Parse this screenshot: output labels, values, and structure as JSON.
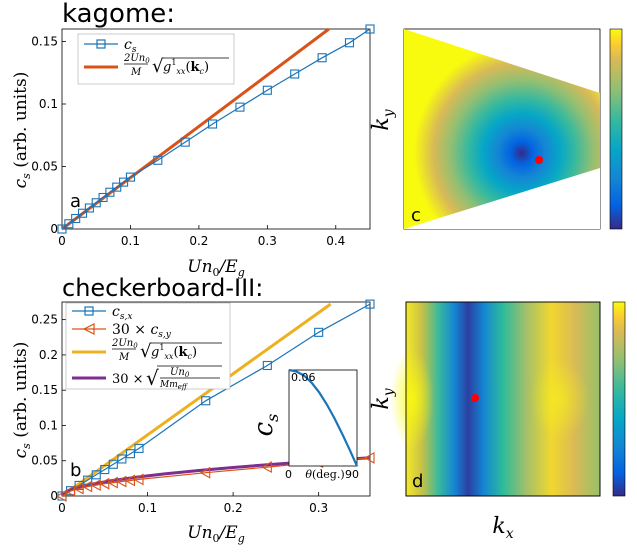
{
  "panels": {
    "a": {
      "title": "kagome:",
      "panel_label": "a",
      "xlabel": "Un_0/E_g",
      "ylabel": "c_s (arb. units)",
      "legend": [
        "c_s",
        "(2Un_0/M) sqrt(g^1_xx(k_c))"
      ]
    },
    "b": {
      "title": "checkerboard-III:",
      "panel_label": "b",
      "xlabel": "Un_0/E_g",
      "ylabel": "c_s (arb. units)",
      "legend": [
        "c_s,x",
        "30 × c_s,y",
        "(2Un_0/M) sqrt(g^1_xx(k_c))",
        "30 × sqrt(Un_0/(M m_eff))"
      ],
      "inset": {
        "ylabel": "c_s",
        "xlabel": "θ(deg.)",
        "xticks": [
          "0",
          "90"
        ],
        "ytick": "0.06"
      }
    },
    "c": {
      "panel_label": "c",
      "ylabel": "k_y"
    },
    "d": {
      "panel_label": "d",
      "ylabel": "k_y",
      "xlabel": "k_x"
    }
  },
  "colors": {
    "blue": "#1a74b8",
    "orange": "#d95319",
    "yellow": "#edb120",
    "purple": "#7e2f8e",
    "marker_red": "#ff0000"
  },
  "chart_data": [
    {
      "type": "line",
      "id": "a",
      "xlim": [
        0,
        0.45
      ],
      "ylim": [
        0,
        0.16
      ],
      "xticks": [
        0,
        0.1,
        0.2,
        0.3,
        0.4
      ],
      "xtick_labels": [
        "0",
        "0.1",
        "0.2",
        "0.3",
        "0.4"
      ],
      "yticks": [
        0,
        0.05,
        0.1,
        0.15
      ],
      "ytick_labels": [
        "0",
        "0.05",
        "0.1",
        "0.15"
      ],
      "series": [
        {
          "name": "c_s",
          "color": "#1a74b8",
          "marker": "square",
          "x": [
            0,
            0.01,
            0.02,
            0.03,
            0.04,
            0.05,
            0.06,
            0.07,
            0.08,
            0.09,
            0.1,
            0.14,
            0.18,
            0.22,
            0.26,
            0.3,
            0.34,
            0.38,
            0.42,
            0.45
          ],
          "y": [
            0,
            0.0042,
            0.0084,
            0.0126,
            0.0168,
            0.021,
            0.0252,
            0.0294,
            0.0335,
            0.0375,
            0.0415,
            0.055,
            0.0695,
            0.084,
            0.0975,
            0.111,
            0.124,
            0.137,
            0.149,
            0.16
          ]
        },
        {
          "name": "(2Un_0/M) sqrt(g^1_xx(k_c))",
          "color": "#d95319",
          "marker": "none",
          "x": [
            0,
            0.39
          ],
          "y": [
            0,
            0.16
          ]
        }
      ]
    },
    {
      "type": "line",
      "id": "b",
      "xlim": [
        0,
        0.36
      ],
      "ylim": [
        0,
        0.275
      ],
      "xticks": [
        0,
        0.1,
        0.2,
        0.3
      ],
      "xtick_labels": [
        "0",
        "0.1",
        "0.2",
        "0.3"
      ],
      "yticks": [
        0,
        0.05,
        0.1,
        0.15,
        0.2,
        0.25
      ],
      "ytick_labels": [
        "0",
        "0.05",
        "0.1",
        "0.15",
        "0.2",
        "0.25"
      ],
      "series": [
        {
          "name": "c_s,x",
          "color": "#1a74b8",
          "marker": "square",
          "x": [
            0,
            0.01,
            0.02,
            0.03,
            0.04,
            0.05,
            0.06,
            0.07,
            0.08,
            0.09,
            0.168,
            0.24,
            0.3,
            0.36
          ],
          "y": [
            0,
            0.0075,
            0.015,
            0.0225,
            0.03,
            0.0375,
            0.045,
            0.0525,
            0.06,
            0.0675,
            0.135,
            0.185,
            0.232,
            0.272
          ]
        },
        {
          "name": "30 × c_s,y",
          "color": "#d95319",
          "marker": "triangle-left",
          "x": [
            0,
            0.01,
            0.02,
            0.03,
            0.04,
            0.05,
            0.06,
            0.07,
            0.08,
            0.09,
            0.168,
            0.24,
            0.3,
            0.36
          ],
          "y": [
            0,
            0.007,
            0.0105,
            0.0135,
            0.0155,
            0.0175,
            0.019,
            0.0205,
            0.022,
            0.0235,
            0.033,
            0.041,
            0.048,
            0.054
          ]
        },
        {
          "name": "(2Un_0/M) sqrt(g^1_xx(k_c))",
          "color": "#edb120",
          "marker": "none",
          "x": [
            0,
            0.314
          ],
          "y": [
            0,
            0.272
          ]
        },
        {
          "name": "30 × sqrt(Un_0/(M m_eff))",
          "color": "#7e2f8e",
          "marker": "none",
          "x": [
            0,
            0.005,
            0.01,
            0.02,
            0.04,
            0.06,
            0.09,
            0.12,
            0.16,
            0.2,
            0.24,
            0.28,
            0.32,
            0.36
          ],
          "y": [
            0,
            0.0064,
            0.0091,
            0.0128,
            0.018,
            0.0221,
            0.0271,
            0.0313,
            0.0362,
            0.0404,
            0.0443,
            0.0478,
            0.0511,
            0.0542
          ]
        }
      ]
    },
    {
      "type": "line",
      "id": "b-inset",
      "xlim": [
        0,
        90
      ],
      "ylim": [
        0,
        0.06
      ],
      "series": [
        {
          "name": "",
          "color": "#1a74b8",
          "marker": "none",
          "x": [
            0,
            10,
            20,
            30,
            40,
            50,
            60,
            70,
            80,
            90
          ],
          "y": [
            0.06,
            0.059,
            0.0565,
            0.052,
            0.046,
            0.0385,
            0.03,
            0.0205,
            0.0105,
            0
          ]
        }
      ]
    },
    {
      "type": "heatmap",
      "id": "c",
      "colormap": "parula",
      "shape": "parallelogram",
      "minimum": [
        0.6,
        0.6
      ],
      "marker": "red dot at minimum"
    },
    {
      "type": "heatmap",
      "id": "d",
      "colormap": "parula",
      "shape": "rectangle",
      "minimum": [
        0.32,
        0.5
      ],
      "marker": "red dot at minimum"
    }
  ]
}
